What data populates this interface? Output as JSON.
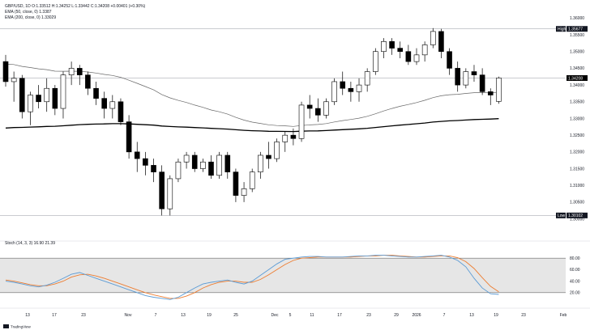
{
  "header": {
    "title_line": "GBP/USD, 1D  O:1.33512  H:1.34252  L:1.33442  C:1.34208  +0.00401 (+0.30%)",
    "ema_fast_line": "EMA (50, close, 0)  1.3387",
    "ema_slow_line": "EMA (200, close, 0)  1.33029",
    "stoch_line": "Stoch (14, 3, 3)  16.90  21.39"
  },
  "price_labels": {
    "high_label": "High",
    "high_value": "1.35677",
    "last_value": "1.34208",
    "low_label": "Low",
    "low_value": "1.30102"
  },
  "price_axis": [
    "1.36000",
    "1.35500",
    "1.35000",
    "1.34500",
    "1.34000",
    "1.33500",
    "1.33000",
    "1.32500",
    "1.32000",
    "1.31500",
    "1.31000",
    "1.30500",
    "1.30000"
  ],
  "stoch_axis": [
    "80.00",
    "60.00",
    "40.00",
    "20.00"
  ],
  "time_axis": [
    "13",
    "17",
    "23",
    "Nov",
    "7",
    "13",
    "19",
    "25",
    "Dec",
    "5",
    "11",
    "17",
    "23",
    "29",
    "2026",
    "7",
    "13",
    "19",
    "23",
    "Feb"
  ],
  "branding": {
    "logo_text": "TradingView"
  },
  "colors": {
    "up_fill": "#ffffff",
    "down_fill": "#000000",
    "wick": "#000000",
    "ema_fast": "#666666",
    "ema_slow": "#000000",
    "stoch_k": "#5b9bd5",
    "stoch_d": "#ed7d31",
    "band": "#e6e6e6"
  },
  "chart_data": {
    "type": "candlestick",
    "x_range": [
      "Oct 8",
      "Feb 2"
    ],
    "price_range": [
      1.2999,
      1.3625
    ],
    "stoch_range": [
      0,
      100
    ],
    "stoch_band": [
      20,
      80
    ],
    "grid": false,
    "ohlc": [
      [
        1.347,
        1.349,
        1.3395,
        1.341
      ],
      [
        1.341,
        1.344,
        1.335,
        1.342
      ],
      [
        1.342,
        1.343,
        1.33,
        1.332
      ],
      [
        1.332,
        1.338,
        1.328,
        1.337
      ],
      [
        1.337,
        1.34,
        1.333,
        1.335
      ],
      [
        1.335,
        1.342,
        1.332,
        1.339
      ],
      [
        1.339,
        1.34,
        1.331,
        1.333
      ],
      [
        1.333,
        1.344,
        1.33,
        1.343
      ],
      [
        1.343,
        1.347,
        1.34,
        1.345
      ],
      [
        1.345,
        1.346,
        1.34,
        1.343
      ],
      [
        1.343,
        1.344,
        1.337,
        1.339
      ],
      [
        1.339,
        1.341,
        1.334,
        1.336
      ],
      [
        1.336,
        1.338,
        1.33,
        1.333
      ],
      [
        1.333,
        1.337,
        1.33,
        1.335
      ],
      [
        1.335,
        1.336,
        1.328,
        1.329
      ],
      [
        1.329,
        1.331,
        1.318,
        1.32
      ],
      [
        1.32,
        1.323,
        1.314,
        1.318
      ],
      [
        1.318,
        1.32,
        1.313,
        1.316
      ],
      [
        1.316,
        1.318,
        1.311,
        1.314
      ],
      [
        1.314,
        1.316,
        1.301,
        1.303
      ],
      [
        1.303,
        1.313,
        1.301,
        1.312
      ],
      [
        1.312,
        1.318,
        1.311,
        1.317
      ],
      [
        1.317,
        1.32,
        1.315,
        1.319
      ],
      [
        1.319,
        1.32,
        1.314,
        1.315
      ],
      [
        1.315,
        1.318,
        1.314,
        1.317
      ],
      [
        1.317,
        1.319,
        1.312,
        1.313
      ],
      [
        1.313,
        1.32,
        1.312,
        1.319
      ],
      [
        1.319,
        1.32,
        1.312,
        1.314
      ],
      [
        1.314,
        1.315,
        1.305,
        1.307
      ],
      [
        1.307,
        1.311,
        1.305,
        1.309
      ],
      [
        1.309,
        1.315,
        1.308,
        1.314
      ],
      [
        1.314,
        1.32,
        1.312,
        1.319
      ],
      [
        1.319,
        1.323,
        1.315,
        1.318
      ],
      [
        1.318,
        1.324,
        1.317,
        1.323
      ],
      [
        1.323,
        1.326,
        1.32,
        1.325
      ],
      [
        1.325,
        1.327,
        1.322,
        1.324
      ],
      [
        1.324,
        1.335,
        1.323,
        1.334
      ],
      [
        1.334,
        1.337,
        1.33,
        1.333
      ],
      [
        1.333,
        1.336,
        1.329,
        1.331
      ],
      [
        1.331,
        1.336,
        1.33,
        1.335
      ],
      [
        1.335,
        1.342,
        1.334,
        1.341
      ],
      [
        1.341,
        1.344,
        1.337,
        1.339
      ],
      [
        1.339,
        1.341,
        1.335,
        1.338
      ],
      [
        1.338,
        1.342,
        1.335,
        1.34
      ],
      [
        1.34,
        1.345,
        1.338,
        1.344
      ],
      [
        1.344,
        1.351,
        1.343,
        1.35
      ],
      [
        1.35,
        1.354,
        1.348,
        1.353
      ],
      [
        1.353,
        1.354,
        1.349,
        1.351
      ],
      [
        1.351,
        1.353,
        1.348,
        1.35
      ],
      [
        1.35,
        1.352,
        1.346,
        1.347
      ],
      [
        1.347,
        1.351,
        1.346,
        1.349
      ],
      [
        1.349,
        1.353,
        1.347,
        1.352
      ],
      [
        1.352,
        1.357,
        1.351,
        1.356
      ],
      [
        1.356,
        1.3568,
        1.348,
        1.35
      ],
      [
        1.35,
        1.351,
        1.343,
        1.345
      ],
      [
        1.345,
        1.347,
        1.338,
        1.34
      ],
      [
        1.34,
        1.345,
        1.339,
        1.344
      ],
      [
        1.344,
        1.346,
        1.341,
        1.343
      ],
      [
        1.343,
        1.345,
        1.337,
        1.338
      ],
      [
        1.338,
        1.339,
        1.334,
        1.337
      ],
      [
        1.3351,
        1.3425,
        1.3344,
        1.3421
      ]
    ],
    "ema_fast_start": 1.3465,
    "ema_slow_start": 1.327,
    "stoch_k": [
      40,
      38,
      35,
      32,
      30,
      33,
      38,
      45,
      52,
      55,
      50,
      45,
      40,
      35,
      30,
      25,
      20,
      15,
      12,
      10,
      8,
      12,
      20,
      28,
      35,
      38,
      40,
      42,
      38,
      35,
      40,
      50,
      60,
      70,
      78,
      80,
      82,
      83,
      83,
      82,
      82,
      82,
      83,
      84,
      84,
      85,
      85,
      84,
      83,
      82,
      82,
      83,
      84,
      85,
      82,
      76,
      65,
      45,
      28,
      18,
      16.9
    ],
    "stoch_d": [
      42,
      40,
      37,
      34,
      32,
      32,
      35,
      40,
      47,
      51,
      52,
      49,
      45,
      40,
      35,
      30,
      25,
      20,
      16,
      13,
      10,
      10,
      14,
      20,
      28,
      34,
      38,
      40,
      40,
      38,
      38,
      43,
      51,
      60,
      69,
      76,
      80,
      81,
      82,
      82,
      82,
      82,
      82,
      83,
      84,
      84,
      85,
      85,
      84,
      83,
      82,
      82,
      83,
      84,
      84,
      81,
      74,
      62,
      46,
      31,
      21.39
    ]
  }
}
